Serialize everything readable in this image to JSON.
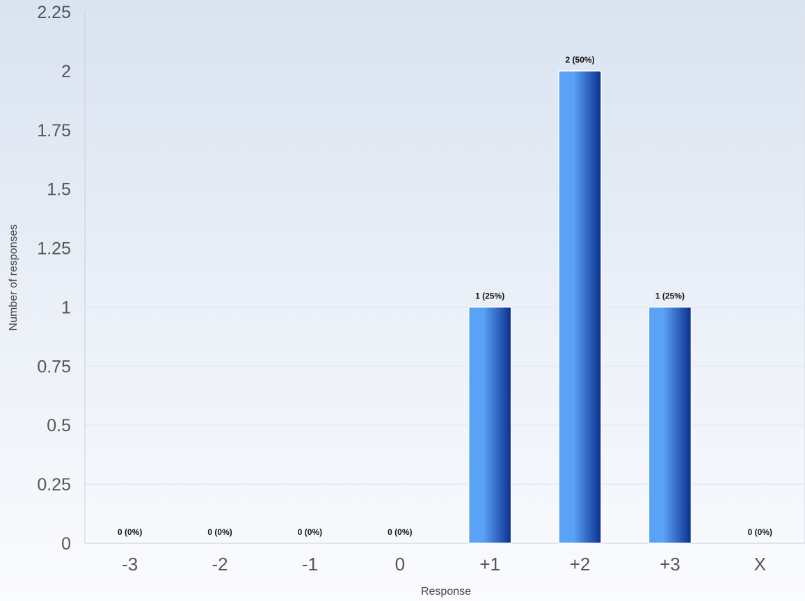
{
  "chart_data": {
    "type": "bar",
    "categories": [
      "-3",
      "-2",
      "-1",
      "0",
      "+1",
      "+2",
      "+3",
      "X"
    ],
    "values": [
      0,
      0,
      0,
      0,
      1,
      2,
      1,
      0
    ],
    "data_labels": [
      "0 (0%)",
      "0 (0%)",
      "0 (0%)",
      "0 (0%)",
      "1 (25%)",
      "2 (50%)",
      "1 (25%)",
      "0 (0%)"
    ],
    "xlabel": "Response",
    "ylabel": "Number of responses",
    "ylim": [
      0,
      2.25
    ],
    "yticks": [
      "0",
      "0.25",
      "0.5",
      "0.75",
      "1",
      "1.25",
      "1.5",
      "1.75",
      "2",
      "2.25"
    ],
    "grid": true,
    "bar_color_light": "#5aa2f5",
    "bar_color_dark": "#0b2f8f"
  }
}
